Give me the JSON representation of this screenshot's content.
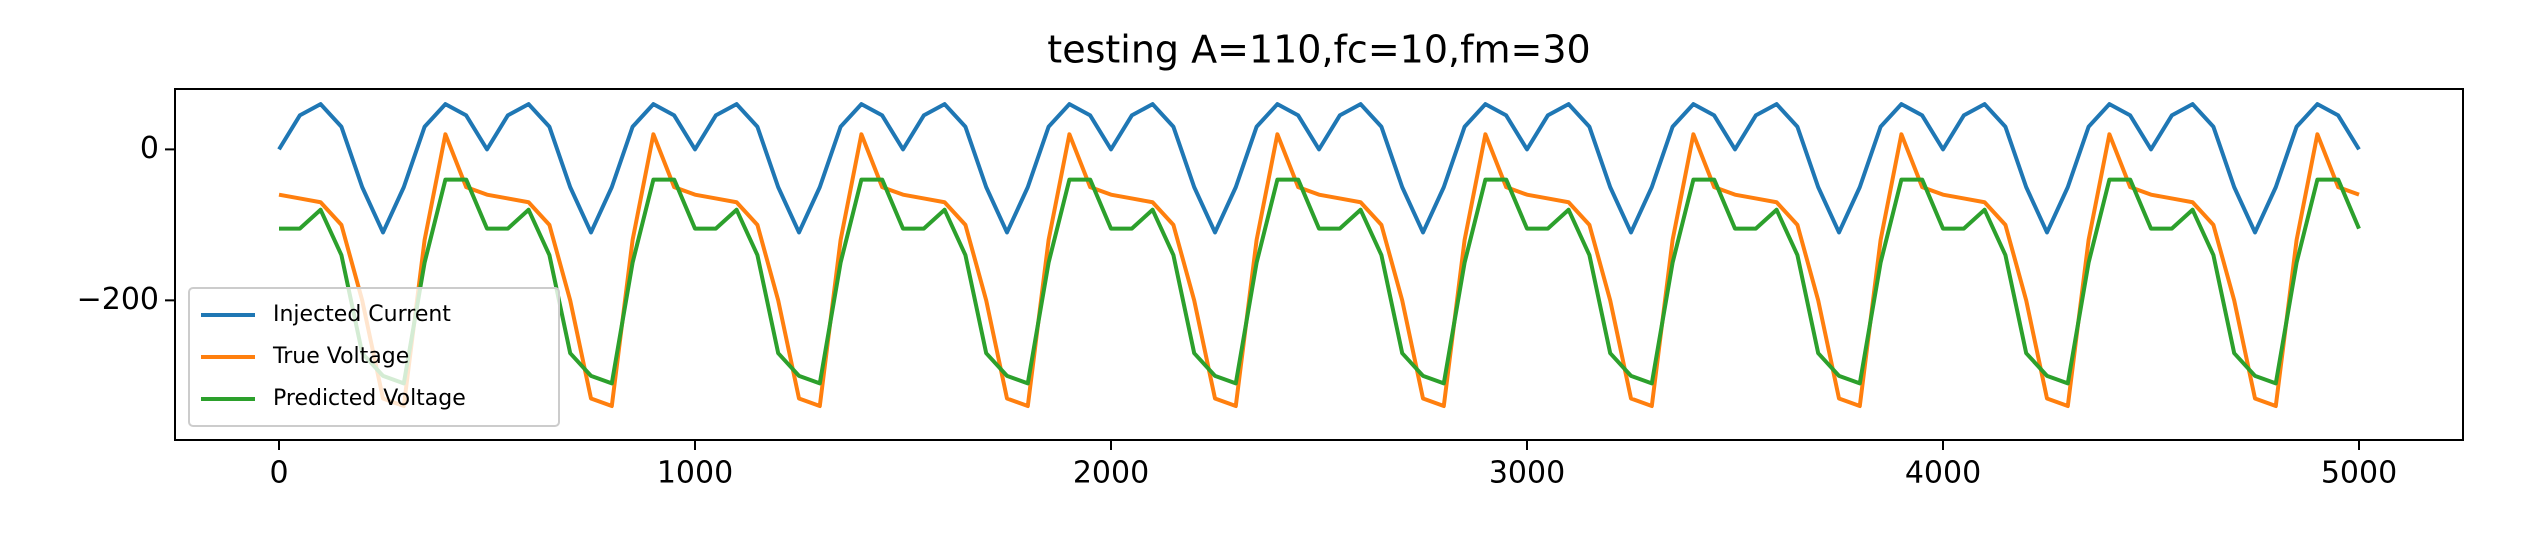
{
  "chart_data": {
    "type": "line",
    "title": "testing A=110,fc=10,fm=30",
    "x": [
      0,
      50,
      100,
      150,
      200,
      250,
      300,
      350,
      400,
      450,
      500,
      550,
      600,
      650,
      700,
      750,
      800,
      850,
      900,
      950,
      1000,
      1050,
      1100,
      1150,
      1200,
      1250,
      1300,
      1350,
      1400,
      1450,
      1500,
      1550,
      1600,
      1650,
      1700,
      1750,
      1800,
      1850,
      1900,
      1950,
      2000,
      2050,
      2100,
      2150,
      2200,
      2250,
      2300,
      2350,
      2400,
      2450,
      2500,
      2550,
      2600,
      2650,
      2700,
      2750,
      2800,
      2850,
      2900,
      2950,
      3000,
      3050,
      3100,
      3150,
      3200,
      3250,
      3300,
      3350,
      3400,
      3450,
      3500,
      3550,
      3600,
      3650,
      3700,
      3750,
      3800,
      3850,
      3900,
      3950,
      4000,
      4050,
      4100,
      4150,
      4200,
      4250,
      4300,
      4350,
      4400,
      4450,
      4500,
      4550,
      4600,
      4650,
      4700,
      4750,
      4800,
      4850,
      4900,
      4950,
      5000
    ],
    "series": [
      {
        "name": "Injected Current",
        "color": "#1f77b4",
        "values": [
          0,
          45,
          60,
          30,
          -50,
          -110,
          -50,
          30,
          60,
          45,
          0,
          45,
          60,
          30,
          -50,
          -110,
          -50,
          30,
          60,
          45,
          0,
          45,
          60,
          30,
          -50,
          -110,
          -50,
          30,
          60,
          45,
          0,
          45,
          60,
          30,
          -50,
          -110,
          -50,
          30,
          60,
          45,
          0,
          45,
          60,
          30,
          -50,
          -110,
          -50,
          30,
          60,
          45,
          0,
          45,
          60,
          30,
          -50,
          -110,
          -50,
          30,
          60,
          45,
          0,
          45,
          60,
          30,
          -50,
          -110,
          -50,
          30,
          60,
          45,
          0,
          45,
          60,
          30,
          -50,
          -110,
          -50,
          30,
          60,
          45,
          0,
          45,
          60,
          30,
          -50,
          -110,
          -50,
          30,
          60,
          45,
          0,
          45,
          60,
          30,
          -50,
          -110,
          -50,
          30,
          60,
          45,
          0
        ]
      },
      {
        "name": "True Voltage",
        "color": "#ff7f0e",
        "values": [
          -60,
          -65,
          -70,
          -100,
          -200,
          -330,
          -340,
          -120,
          20,
          -50,
          -60,
          -65,
          -70,
          -100,
          -200,
          -330,
          -340,
          -120,
          20,
          -50,
          -60,
          -65,
          -70,
          -100,
          -200,
          -330,
          -340,
          -120,
          20,
          -50,
          -60,
          -65,
          -70,
          -100,
          -200,
          -330,
          -340,
          -120,
          20,
          -50,
          -60,
          -65,
          -70,
          -100,
          -200,
          -330,
          -340,
          -120,
          20,
          -50,
          -60,
          -65,
          -70,
          -100,
          -200,
          -330,
          -340,
          -120,
          20,
          -50,
          -60,
          -65,
          -70,
          -100,
          -200,
          -330,
          -340,
          -120,
          20,
          -50,
          -60,
          -65,
          -70,
          -100,
          -200,
          -330,
          -340,
          -120,
          20,
          -50,
          -60,
          -65,
          -70,
          -100,
          -200,
          -330,
          -340,
          -120,
          20,
          -50,
          -60,
          -65,
          -70,
          -100,
          -200,
          -330,
          -340,
          -120,
          20,
          -50,
          -60
        ]
      },
      {
        "name": "Predicted Voltage",
        "color": "#2ca02c",
        "values": [
          -105,
          -105,
          -80,
          -140,
          -270,
          -300,
          -310,
          -150,
          -40,
          -40,
          -105,
          -105,
          -80,
          -140,
          -270,
          -300,
          -310,
          -150,
          -40,
          -40,
          -105,
          -105,
          -80,
          -140,
          -270,
          -300,
          -310,
          -150,
          -40,
          -40,
          -105,
          -105,
          -80,
          -140,
          -270,
          -300,
          -310,
          -150,
          -40,
          -40,
          -105,
          -105,
          -80,
          -140,
          -270,
          -300,
          -310,
          -150,
          -40,
          -40,
          -105,
          -105,
          -80,
          -140,
          -270,
          -300,
          -310,
          -150,
          -40,
          -40,
          -105,
          -105,
          -80,
          -140,
          -270,
          -300,
          -310,
          -150,
          -40,
          -40,
          -105,
          -105,
          -80,
          -140,
          -270,
          -300,
          -310,
          -150,
          -40,
          -40,
          -105,
          -105,
          -80,
          -140,
          -270,
          -300,
          -310,
          -150,
          -40,
          -40,
          -105,
          -105,
          -80,
          -140,
          -270,
          -300,
          -310,
          -150,
          -40,
          -40,
          -105
        ]
      }
    ],
    "xlim": [
      -250,
      5250
    ],
    "xticks": [
      0,
      1000,
      2000,
      3000,
      4000,
      5000
    ],
    "ylim": [
      -385,
      80
    ],
    "yticks": [
      {
        "value": -200,
        "label": "−200"
      },
      0
    ],
    "legend": "lower left",
    "grid": false
  }
}
